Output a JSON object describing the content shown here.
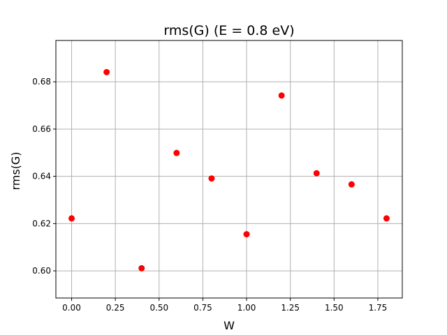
{
  "chart_data": {
    "type": "scatter",
    "title": "rms(G) (E = 0.8 eV)",
    "xlabel": "W",
    "ylabel": "rms(G)",
    "xlim": [
      -0.09,
      1.89
    ],
    "ylim": [
      0.5885,
      0.6975
    ],
    "xticks": [
      0.0,
      0.25,
      0.5,
      0.75,
      1.0,
      1.25,
      1.5,
      1.75
    ],
    "xtick_labels": [
      "0.00",
      "0.25",
      "0.50",
      "0.75",
      "1.00",
      "1.25",
      "1.50",
      "1.75"
    ],
    "yticks": [
      0.6,
      0.62,
      0.64,
      0.66,
      0.68
    ],
    "ytick_labels": [
      "0.60",
      "0.62",
      "0.64",
      "0.66",
      "0.68"
    ],
    "grid": true,
    "marker_color": "#ff0000",
    "points": [
      {
        "x": 0.0,
        "y": 0.6222
      },
      {
        "x": 0.2,
        "y": 0.6841
      },
      {
        "x": 0.4,
        "y": 0.6011
      },
      {
        "x": 0.6,
        "y": 0.6499
      },
      {
        "x": 0.8,
        "y": 0.6391
      },
      {
        "x": 1.0,
        "y": 0.6155
      },
      {
        "x": 1.2,
        "y": 0.6742
      },
      {
        "x": 1.4,
        "y": 0.6413
      },
      {
        "x": 1.6,
        "y": 0.6366
      },
      {
        "x": 1.8,
        "y": 0.6222
      }
    ]
  }
}
